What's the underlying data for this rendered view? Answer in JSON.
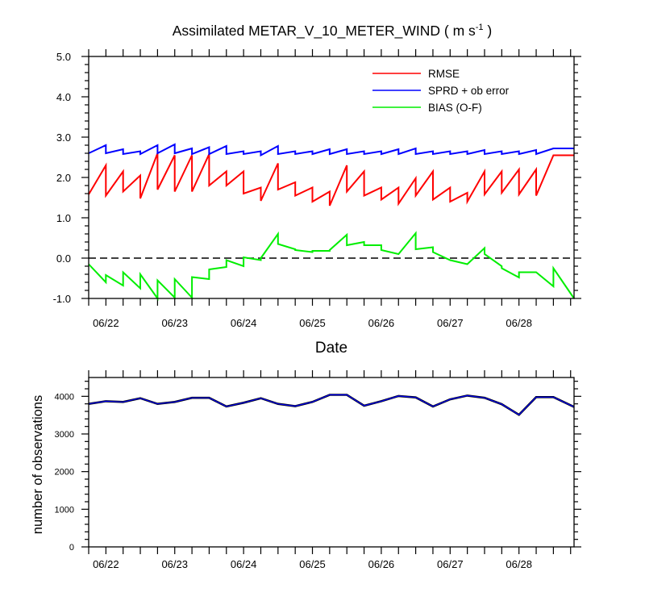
{
  "chart_data": [
    {
      "type": "line",
      "title_main": "Assimilated METAR_V_10_METER_WIND ( m s",
      "title_sup": "-1",
      "title_close": " )",
      "xlabel": "Date",
      "ylabel": "",
      "x_tick_labels": [
        "06/22",
        "06/23",
        "06/24",
        "06/25",
        "06/26",
        "06/27",
        "06/28"
      ],
      "y_tick_labels": [
        "5.0",
        "4.0",
        "3.0",
        "2.0",
        "1.0",
        "0.0",
        "-1.0"
      ],
      "y_tick_values": [
        5,
        4,
        3,
        2,
        1,
        0,
        -1
      ],
      "ylim": [
        -1,
        5
      ],
      "xlim": [
        0,
        7.05
      ],
      "zero_line": true,
      "legend_position": "top-right",
      "series": [
        {
          "name": "RMSE",
          "color": "#ff0000",
          "points": [
            [
              0.0,
              1.58
            ],
            [
              0.25,
              2.3
            ],
            [
              0.25,
              1.55
            ],
            [
              0.5,
              2.15
            ],
            [
              0.5,
              1.65
            ],
            [
              0.75,
              2.05
            ],
            [
              0.75,
              1.48
            ],
            [
              1.0,
              2.6
            ],
            [
              1.0,
              1.7
            ],
            [
              1.25,
              2.55
            ],
            [
              1.25,
              1.65
            ],
            [
              1.5,
              2.55
            ],
            [
              1.5,
              1.65
            ],
            [
              1.75,
              2.58
            ],
            [
              1.75,
              1.8
            ],
            [
              2.0,
              2.15
            ],
            [
              2.0,
              1.8
            ],
            [
              2.25,
              2.15
            ],
            [
              2.25,
              1.6
            ],
            [
              2.5,
              1.75
            ],
            [
              2.5,
              1.42
            ],
            [
              2.75,
              2.35
            ],
            [
              2.75,
              1.7
            ],
            [
              3.0,
              1.88
            ],
            [
              3.0,
              1.55
            ],
            [
              3.25,
              1.75
            ],
            [
              3.25,
              1.4
            ],
            [
              3.5,
              1.65
            ],
            [
              3.5,
              1.3
            ],
            [
              3.75,
              2.3
            ],
            [
              3.75,
              1.65
            ],
            [
              4.0,
              2.15
            ],
            [
              4.0,
              1.55
            ],
            [
              4.25,
              1.75
            ],
            [
              4.25,
              1.45
            ],
            [
              4.5,
              1.75
            ],
            [
              4.5,
              1.35
            ],
            [
              4.75,
              1.98
            ],
            [
              4.75,
              1.55
            ],
            [
              5.0,
              2.15
            ],
            [
              5.0,
              1.45
            ],
            [
              5.25,
              1.75
            ],
            [
              5.25,
              1.4
            ],
            [
              5.5,
              1.62
            ],
            [
              5.5,
              1.4
            ],
            [
              5.75,
              2.15
            ],
            [
              5.75,
              1.58
            ],
            [
              6.0,
              2.15
            ],
            [
              6.0,
              1.62
            ],
            [
              6.25,
              2.2
            ],
            [
              6.25,
              1.58
            ],
            [
              6.5,
              2.2
            ],
            [
              6.5,
              1.55
            ],
            [
              6.75,
              2.55
            ],
            [
              7.05,
              2.55
            ]
          ]
        },
        {
          "name": "SPRD + ob error",
          "color": "#0000ff",
          "points": [
            [
              0.0,
              2.6
            ],
            [
              0.25,
              2.8
            ],
            [
              0.25,
              2.6
            ],
            [
              0.5,
              2.7
            ],
            [
              0.5,
              2.58
            ],
            [
              0.75,
              2.65
            ],
            [
              0.75,
              2.58
            ],
            [
              1.0,
              2.8
            ],
            [
              1.0,
              2.6
            ],
            [
              1.25,
              2.82
            ],
            [
              1.25,
              2.6
            ],
            [
              1.5,
              2.72
            ],
            [
              1.5,
              2.58
            ],
            [
              1.75,
              2.75
            ],
            [
              1.75,
              2.58
            ],
            [
              2.0,
              2.78
            ],
            [
              2.0,
              2.58
            ],
            [
              2.25,
              2.65
            ],
            [
              2.25,
              2.58
            ],
            [
              2.5,
              2.65
            ],
            [
              2.5,
              2.55
            ],
            [
              2.75,
              2.78
            ],
            [
              2.75,
              2.58
            ],
            [
              3.0,
              2.65
            ],
            [
              3.0,
              2.58
            ],
            [
              3.25,
              2.65
            ],
            [
              3.25,
              2.58
            ],
            [
              3.5,
              2.7
            ],
            [
              3.5,
              2.58
            ],
            [
              3.75,
              2.7
            ],
            [
              3.75,
              2.58
            ],
            [
              4.0,
              2.65
            ],
            [
              4.0,
              2.58
            ],
            [
              4.25,
              2.65
            ],
            [
              4.25,
              2.58
            ],
            [
              4.5,
              2.7
            ],
            [
              4.5,
              2.58
            ],
            [
              4.75,
              2.72
            ],
            [
              4.75,
              2.58
            ],
            [
              5.0,
              2.65
            ],
            [
              5.0,
              2.58
            ],
            [
              5.25,
              2.65
            ],
            [
              5.25,
              2.58
            ],
            [
              5.5,
              2.65
            ],
            [
              5.5,
              2.58
            ],
            [
              5.75,
              2.68
            ],
            [
              5.75,
              2.58
            ],
            [
              6.0,
              2.65
            ],
            [
              6.0,
              2.58
            ],
            [
              6.25,
              2.65
            ],
            [
              6.25,
              2.58
            ],
            [
              6.5,
              2.68
            ],
            [
              6.5,
              2.58
            ],
            [
              6.75,
              2.72
            ],
            [
              7.05,
              2.72
            ]
          ]
        },
        {
          "name": "BIAS (O-F)",
          "color": "#00ee00",
          "points": [
            [
              0.0,
              -0.15
            ],
            [
              0.25,
              -0.6
            ],
            [
              0.25,
              -0.42
            ],
            [
              0.5,
              -0.68
            ],
            [
              0.5,
              -0.35
            ],
            [
              0.75,
              -0.75
            ],
            [
              0.75,
              -0.4
            ],
            [
              1.0,
              -1.0
            ],
            [
              1.0,
              -0.55
            ],
            [
              1.25,
              -0.98
            ],
            [
              1.25,
              -0.52
            ],
            [
              1.5,
              -0.98
            ],
            [
              1.5,
              -0.47
            ],
            [
              1.75,
              -0.52
            ],
            [
              1.75,
              -0.28
            ],
            [
              2.0,
              -0.22
            ],
            [
              2.0,
              -0.05
            ],
            [
              2.25,
              -0.2
            ],
            [
              2.25,
              0.02
            ],
            [
              2.5,
              -0.05
            ],
            [
              2.5,
              0.0
            ],
            [
              2.75,
              0.6
            ],
            [
              2.75,
              0.35
            ],
            [
              3.0,
              0.22
            ],
            [
              3.0,
              0.2
            ],
            [
              3.25,
              0.15
            ],
            [
              3.25,
              0.18
            ],
            [
              3.5,
              0.18
            ],
            [
              3.5,
              0.2
            ],
            [
              3.75,
              0.58
            ],
            [
              3.75,
              0.32
            ],
            [
              4.0,
              0.4
            ],
            [
              4.0,
              0.32
            ],
            [
              4.25,
              0.32
            ],
            [
              4.25,
              0.2
            ],
            [
              4.5,
              0.1
            ],
            [
              4.75,
              0.62
            ],
            [
              4.75,
              0.22
            ],
            [
              5.0,
              0.27
            ],
            [
              5.0,
              0.15
            ],
            [
              5.25,
              -0.05
            ],
            [
              5.5,
              -0.15
            ],
            [
              5.75,
              0.25
            ],
            [
              5.75,
              0.1
            ],
            [
              6.0,
              -0.2
            ],
            [
              6.0,
              -0.25
            ],
            [
              6.25,
              -0.48
            ],
            [
              6.25,
              -0.35
            ],
            [
              6.5,
              -0.35
            ],
            [
              6.75,
              -0.7
            ],
            [
              6.75,
              -0.25
            ],
            [
              7.05,
              -1.0
            ]
          ]
        }
      ]
    },
    {
      "type": "line",
      "xlabel": "",
      "ylabel": "number of observations",
      "x_tick_labels": [
        "06/22",
        "06/23",
        "06/24",
        "06/25",
        "06/26",
        "06/27",
        "06/28"
      ],
      "y_tick_labels": [
        "0",
        "1000",
        "2000",
        "3000",
        "4000"
      ],
      "y_tick_values": [
        0,
        1000,
        2000,
        3000,
        4000
      ],
      "ylim": [
        0,
        4500
      ],
      "xlim": [
        0,
        7.05
      ],
      "series": [
        {
          "name": "number of observations",
          "colors": [
            "#000000",
            "#0000ff"
          ],
          "x": [
            0,
            0.25,
            0.5,
            0.75,
            1.0,
            1.25,
            1.5,
            1.75,
            2.0,
            2.25,
            2.5,
            2.75,
            3.0,
            3.25,
            3.5,
            3.75,
            4.0,
            4.25,
            4.5,
            4.75,
            5.0,
            5.25,
            5.5,
            5.75,
            6.0,
            6.25,
            6.5,
            6.75,
            7.05
          ],
          "values": [
            3800,
            3870,
            3850,
            3950,
            3800,
            3850,
            3960,
            3960,
            3730,
            3830,
            3950,
            3800,
            3740,
            3850,
            4040,
            4040,
            3750,
            3870,
            4010,
            3970,
            3730,
            3920,
            4020,
            3960,
            3790,
            3510,
            3980,
            3980,
            3720
          ]
        }
      ]
    }
  ]
}
